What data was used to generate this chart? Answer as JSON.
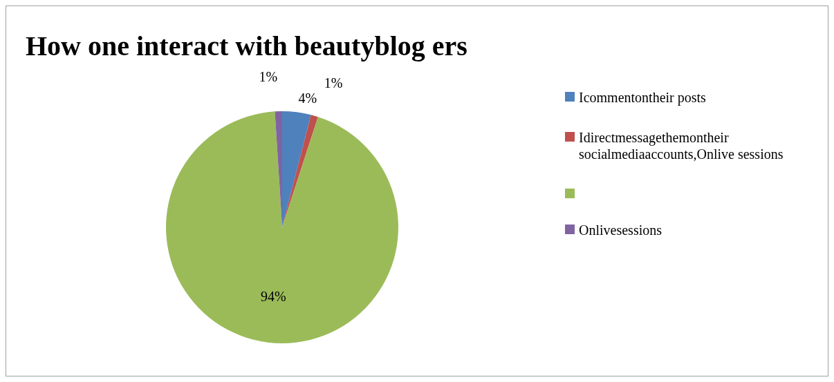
{
  "chart_data": {
    "type": "pie",
    "title": "How one interact with beautyblog ers",
    "categories": [
      "Icommentontheir posts",
      "Idirectmessagethemontheir socialmediaaccounts,Onlive sessions",
      null,
      "Onlivesessions"
    ],
    "values": [
      4,
      1,
      94,
      1
    ],
    "colors": [
      "#4f81bd",
      "#c0504d",
      "#9bbb59",
      "#8064a2"
    ],
    "value_labels": [
      "4%",
      "1%",
      "94%",
      "1%"
    ],
    "legend": "right"
  }
}
